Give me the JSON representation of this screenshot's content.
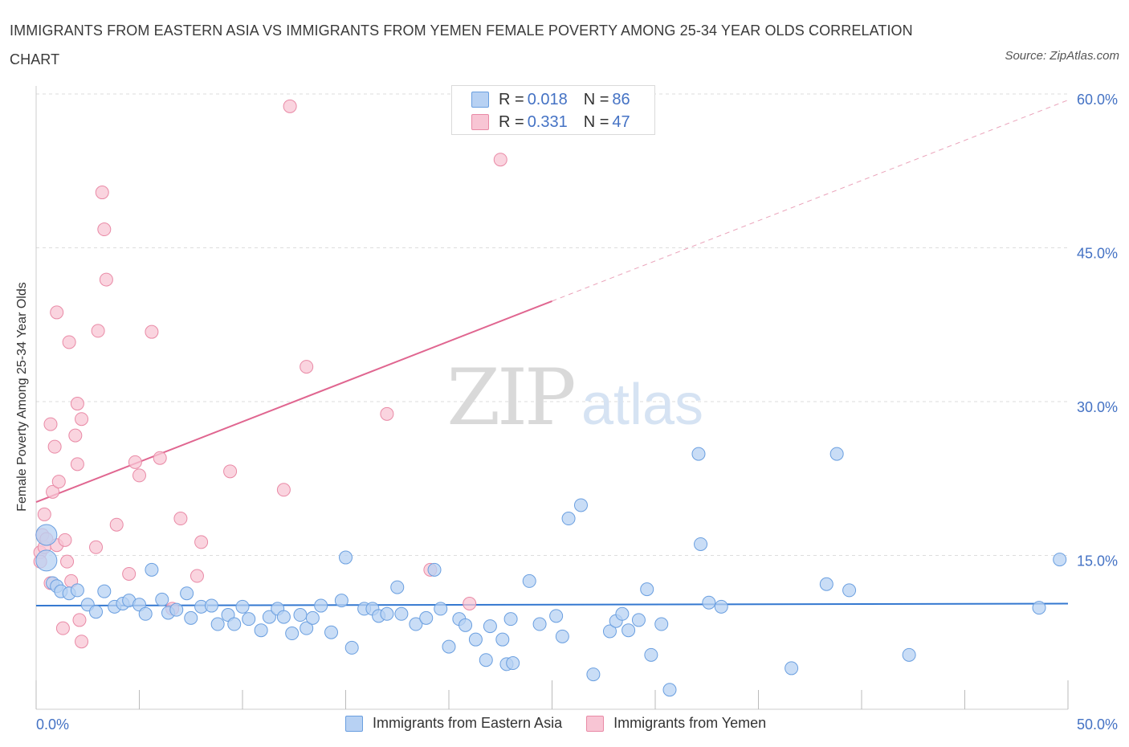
{
  "title": "IMMIGRANTS FROM EASTERN ASIA VS IMMIGRANTS FROM YEMEN FEMALE POVERTY AMONG 25-34 YEAR OLDS CORRELATION CHART",
  "source": "Source: ZipAtlas.com",
  "watermark": {
    "zip": "ZIP",
    "atlas": "atlas"
  },
  "legend_top": [
    {
      "r_label": "R =",
      "r_value": "0.018",
      "n_label": "N =",
      "n_value": "86"
    },
    {
      "r_label": "R =",
      "r_value": "0.331",
      "n_label": "N =",
      "n_value": "47"
    }
  ],
  "colors": {
    "blue_fill": "#b7d1f3",
    "blue_stroke": "#6a9fe0",
    "blue_line": "#3478d0",
    "pink_fill": "#f8c5d4",
    "pink_stroke": "#e98aa6",
    "pink_line": "#e06690",
    "grid": "#dddddd",
    "tick_label": "#4472c4"
  },
  "chart_data": {
    "type": "scatter",
    "title": "IMMIGRANTS FROM EASTERN ASIA VS IMMIGRANTS FROM YEMEN FEMALE POVERTY AMONG 25-34 YEAR OLDS CORRELATION CHART",
    "xlabel": "",
    "ylabel": "Female Poverty Among 25-34 Year Olds",
    "xlim": [
      0,
      50
    ],
    "ylim": [
      0,
      60
    ],
    "x_tick_labels": [
      "0.0%",
      "50.0%"
    ],
    "y_ticks": [
      15,
      30,
      45,
      60
    ],
    "y_tick_labels": [
      "15.0%",
      "30.0%",
      "45.0%",
      "60.0%"
    ],
    "grid": true,
    "legend": "bottom-center",
    "series": [
      {
        "name": "Immigrants from Eastern Asia",
        "R": 0.018,
        "N": 86,
        "trend": {
          "x0": 0,
          "y0": 10.1,
          "x1": 50,
          "y1": 10.3
        },
        "points": [
          [
            0.5,
            17.0
          ],
          [
            0.5,
            14.5
          ],
          [
            0.8,
            12.3
          ],
          [
            1.0,
            12.0
          ],
          [
            1.2,
            11.5
          ],
          [
            1.6,
            11.3
          ],
          [
            2.0,
            11.6
          ],
          [
            2.5,
            10.2
          ],
          [
            2.9,
            9.5
          ],
          [
            3.3,
            11.5
          ],
          [
            3.8,
            10.0
          ],
          [
            4.2,
            10.3
          ],
          [
            4.5,
            10.6
          ],
          [
            5.0,
            10.2
          ],
          [
            5.3,
            9.3
          ],
          [
            5.6,
            13.6
          ],
          [
            6.1,
            10.7
          ],
          [
            6.4,
            9.4
          ],
          [
            6.8,
            9.7
          ],
          [
            7.3,
            11.3
          ],
          [
            7.5,
            8.9
          ],
          [
            8.0,
            10.0
          ],
          [
            8.5,
            10.1
          ],
          [
            8.8,
            8.3
          ],
          [
            9.3,
            9.2
          ],
          [
            9.6,
            8.3
          ],
          [
            10.0,
            10.0
          ],
          [
            10.3,
            8.8
          ],
          [
            10.9,
            7.7
          ],
          [
            11.3,
            9.0
          ],
          [
            11.7,
            9.8
          ],
          [
            12.0,
            9.0
          ],
          [
            12.4,
            7.4
          ],
          [
            12.8,
            9.2
          ],
          [
            13.1,
            7.9
          ],
          [
            13.4,
            8.9
          ],
          [
            13.8,
            10.1
          ],
          [
            14.3,
            7.5
          ],
          [
            14.8,
            10.6
          ],
          [
            15.0,
            14.8
          ],
          [
            15.3,
            6.0
          ],
          [
            15.9,
            9.8
          ],
          [
            16.3,
            9.8
          ],
          [
            16.6,
            9.1
          ],
          [
            17.0,
            9.3
          ],
          [
            17.5,
            11.9
          ],
          [
            17.7,
            9.3
          ],
          [
            18.4,
            8.3
          ],
          [
            18.9,
            8.9
          ],
          [
            19.3,
            13.6
          ],
          [
            19.6,
            9.8
          ],
          [
            20.0,
            6.1
          ],
          [
            20.5,
            8.8
          ],
          [
            20.8,
            8.2
          ],
          [
            21.3,
            6.8
          ],
          [
            21.8,
            4.8
          ],
          [
            22.0,
            8.1
          ],
          [
            22.6,
            6.8
          ],
          [
            22.8,
            4.4
          ],
          [
            23.0,
            8.8
          ],
          [
            23.1,
            4.5
          ],
          [
            23.9,
            12.5
          ],
          [
            24.4,
            8.3
          ],
          [
            25.2,
            9.1
          ],
          [
            25.5,
            7.1
          ],
          [
            25.8,
            18.6
          ],
          [
            26.4,
            19.9
          ],
          [
            27.0,
            3.4
          ],
          [
            27.8,
            7.6
          ],
          [
            28.1,
            8.6
          ],
          [
            28.4,
            9.3
          ],
          [
            28.7,
            7.7
          ],
          [
            29.2,
            8.7
          ],
          [
            29.6,
            11.7
          ],
          [
            29.8,
            5.3
          ],
          [
            30.3,
            8.3
          ],
          [
            30.7,
            1.9
          ],
          [
            32.1,
            24.9
          ],
          [
            32.2,
            16.1
          ],
          [
            32.6,
            10.4
          ],
          [
            33.2,
            10.0
          ],
          [
            36.6,
            4.0
          ],
          [
            38.3,
            12.2
          ],
          [
            38.8,
            24.9
          ],
          [
            39.4,
            11.6
          ],
          [
            42.3,
            5.3
          ],
          [
            48.6,
            9.9
          ],
          [
            49.6,
            14.6
          ]
        ]
      },
      {
        "name": "Immigrants from Yemen",
        "R": 0.331,
        "N": 47,
        "trend": {
          "x0": 0,
          "y0": 20.2,
          "x1": 25,
          "y1": 39.8,
          "dashed_to_x": 50,
          "dashed_to_y": 59.4
        },
        "points": [
          [
            0.2,
            15.3
          ],
          [
            0.2,
            14.4
          ],
          [
            0.3,
            17.0
          ],
          [
            0.4,
            19.0
          ],
          [
            0.4,
            15.8
          ],
          [
            0.5,
            16.6
          ],
          [
            0.7,
            27.8
          ],
          [
            0.7,
            12.3
          ],
          [
            0.8,
            21.2
          ],
          [
            0.9,
            25.6
          ],
          [
            1.0,
            38.7
          ],
          [
            1.0,
            16.0
          ],
          [
            1.1,
            22.2
          ],
          [
            1.3,
            7.9
          ],
          [
            1.4,
            16.5
          ],
          [
            1.5,
            14.4
          ],
          [
            1.6,
            35.8
          ],
          [
            1.7,
            12.5
          ],
          [
            1.9,
            26.7
          ],
          [
            2.0,
            29.8
          ],
          [
            2.0,
            23.9
          ],
          [
            2.1,
            8.7
          ],
          [
            2.2,
            28.3
          ],
          [
            2.2,
            6.6
          ],
          [
            2.9,
            15.8
          ],
          [
            3.0,
            36.9
          ],
          [
            3.2,
            50.4
          ],
          [
            3.3,
            46.8
          ],
          [
            3.4,
            41.9
          ],
          [
            3.9,
            18.0
          ],
          [
            4.5,
            13.2
          ],
          [
            4.8,
            24.1
          ],
          [
            5.0,
            22.8
          ],
          [
            5.6,
            36.8
          ],
          [
            6.0,
            24.5
          ],
          [
            6.6,
            9.8
          ],
          [
            7.0,
            18.6
          ],
          [
            7.8,
            13.0
          ],
          [
            8.0,
            16.3
          ],
          [
            9.4,
            23.2
          ],
          [
            12.0,
            21.4
          ],
          [
            12.3,
            58.8
          ],
          [
            13.1,
            33.4
          ],
          [
            17.0,
            28.8
          ],
          [
            19.1,
            13.6
          ],
          [
            21.0,
            10.3
          ],
          [
            22.5,
            53.6
          ]
        ]
      }
    ]
  },
  "bottom_legend": [
    "Immigrants from Eastern Asia",
    "Immigrants from Yemen"
  ]
}
